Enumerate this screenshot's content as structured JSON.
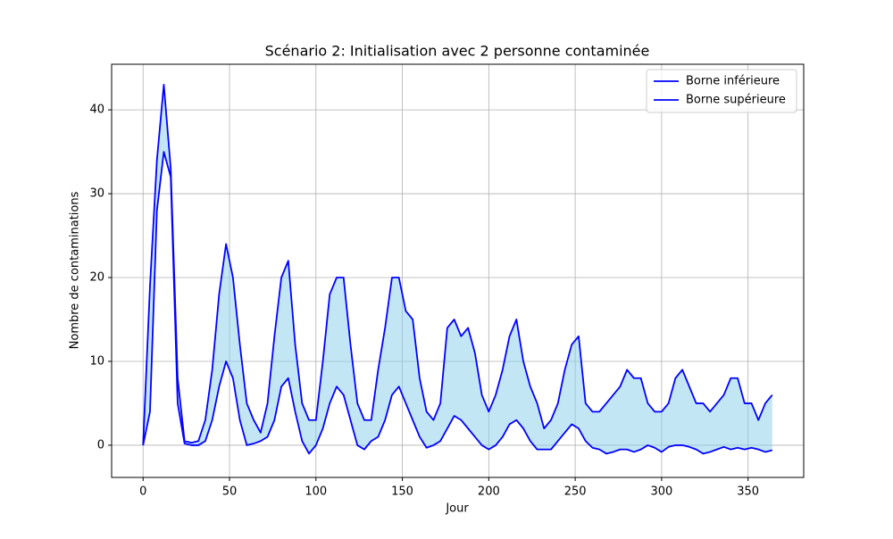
{
  "chart_data": {
    "type": "line",
    "title": "Scénario 2: Initialisation avec 2 personne contaminée",
    "xlabel": "Jour",
    "ylabel": "Nombre de contaminations",
    "x": [
      0,
      4,
      8,
      12,
      16,
      20,
      24,
      28,
      32,
      36,
      40,
      44,
      48,
      52,
      56,
      60,
      64,
      68,
      72,
      76,
      80,
      84,
      88,
      92,
      96,
      100,
      104,
      108,
      112,
      116,
      120,
      124,
      128,
      132,
      136,
      140,
      144,
      148,
      152,
      156,
      160,
      164,
      168,
      172,
      176,
      180,
      184,
      188,
      192,
      196,
      200,
      204,
      208,
      212,
      216,
      220,
      224,
      228,
      232,
      236,
      240,
      244,
      248,
      252,
      256,
      260,
      264,
      268,
      272,
      276,
      280,
      284,
      288,
      292,
      296,
      300,
      304,
      308,
      312,
      316,
      320,
      324,
      328,
      332,
      336,
      340,
      344,
      348,
      352,
      356,
      360,
      364
    ],
    "series": [
      {
        "name": "Borne inférieure",
        "color": "#0000ff",
        "values": [
          0,
          4,
          28,
          35,
          32,
          5,
          0.2,
          0,
          0,
          0.5,
          3,
          7,
          10,
          8,
          3,
          0,
          0.2,
          0.5,
          1,
          3,
          7,
          8,
          4,
          0.5,
          -1,
          0,
          2,
          5,
          7,
          6,
          3,
          0,
          -0.5,
          0.5,
          1,
          3,
          6,
          7,
          5,
          3,
          1,
          -0.3,
          0,
          0.5,
          2,
          3.5,
          3,
          2,
          1,
          0,
          -0.5,
          0,
          1,
          2.5,
          3,
          2,
          0.5,
          -0.5,
          -0.5,
          -0.5,
          0.5,
          1.5,
          2.5,
          2,
          0.5,
          -0.3,
          -0.5,
          -1,
          -0.8,
          -0.5,
          -0.5,
          -0.8,
          -0.5,
          0,
          -0.3,
          -0.8,
          -0.2,
          0,
          0,
          -0.2,
          -0.5,
          -1,
          -0.8,
          -0.5,
          -0.2,
          -0.5,
          -0.3,
          -0.5,
          -0.3,
          -0.5,
          -0.8,
          -0.6
        ]
      },
      {
        "name": "Borne supérieure",
        "color": "#0000ff",
        "values": [
          0,
          19,
          34,
          43,
          33,
          8,
          0.5,
          0.3,
          0.5,
          3,
          9,
          18,
          24,
          20,
          12,
          5,
          3,
          1.5,
          5,
          13,
          20,
          22,
          12,
          5,
          3,
          3,
          10,
          18,
          20,
          20,
          12,
          5,
          3,
          3,
          9,
          14,
          20,
          20,
          16,
          15,
          8,
          4,
          3,
          5,
          14,
          15,
          13,
          14,
          11,
          6,
          4,
          6,
          9,
          13,
          15,
          10,
          7,
          5,
          2,
          3,
          5,
          9,
          12,
          13,
          5,
          4,
          4,
          5,
          6,
          7,
          9,
          8,
          8,
          5,
          4,
          4,
          5,
          8,
          9,
          7,
          5,
          5,
          4,
          5,
          6,
          8,
          8,
          5,
          5,
          3,
          5,
          6
        ]
      }
    ],
    "fill_between": {
      "color": "#87ceeb",
      "alpha": 0.5
    },
    "xlim": [
      -18.2,
      382.2
    ],
    "ylim": [
      -3.84,
      45.44
    ],
    "xticks": [
      0,
      50,
      100,
      150,
      200,
      250,
      300,
      350
    ],
    "yticks": [
      0,
      10,
      20,
      30,
      40
    ],
    "grid": true,
    "legend": "upper right"
  }
}
